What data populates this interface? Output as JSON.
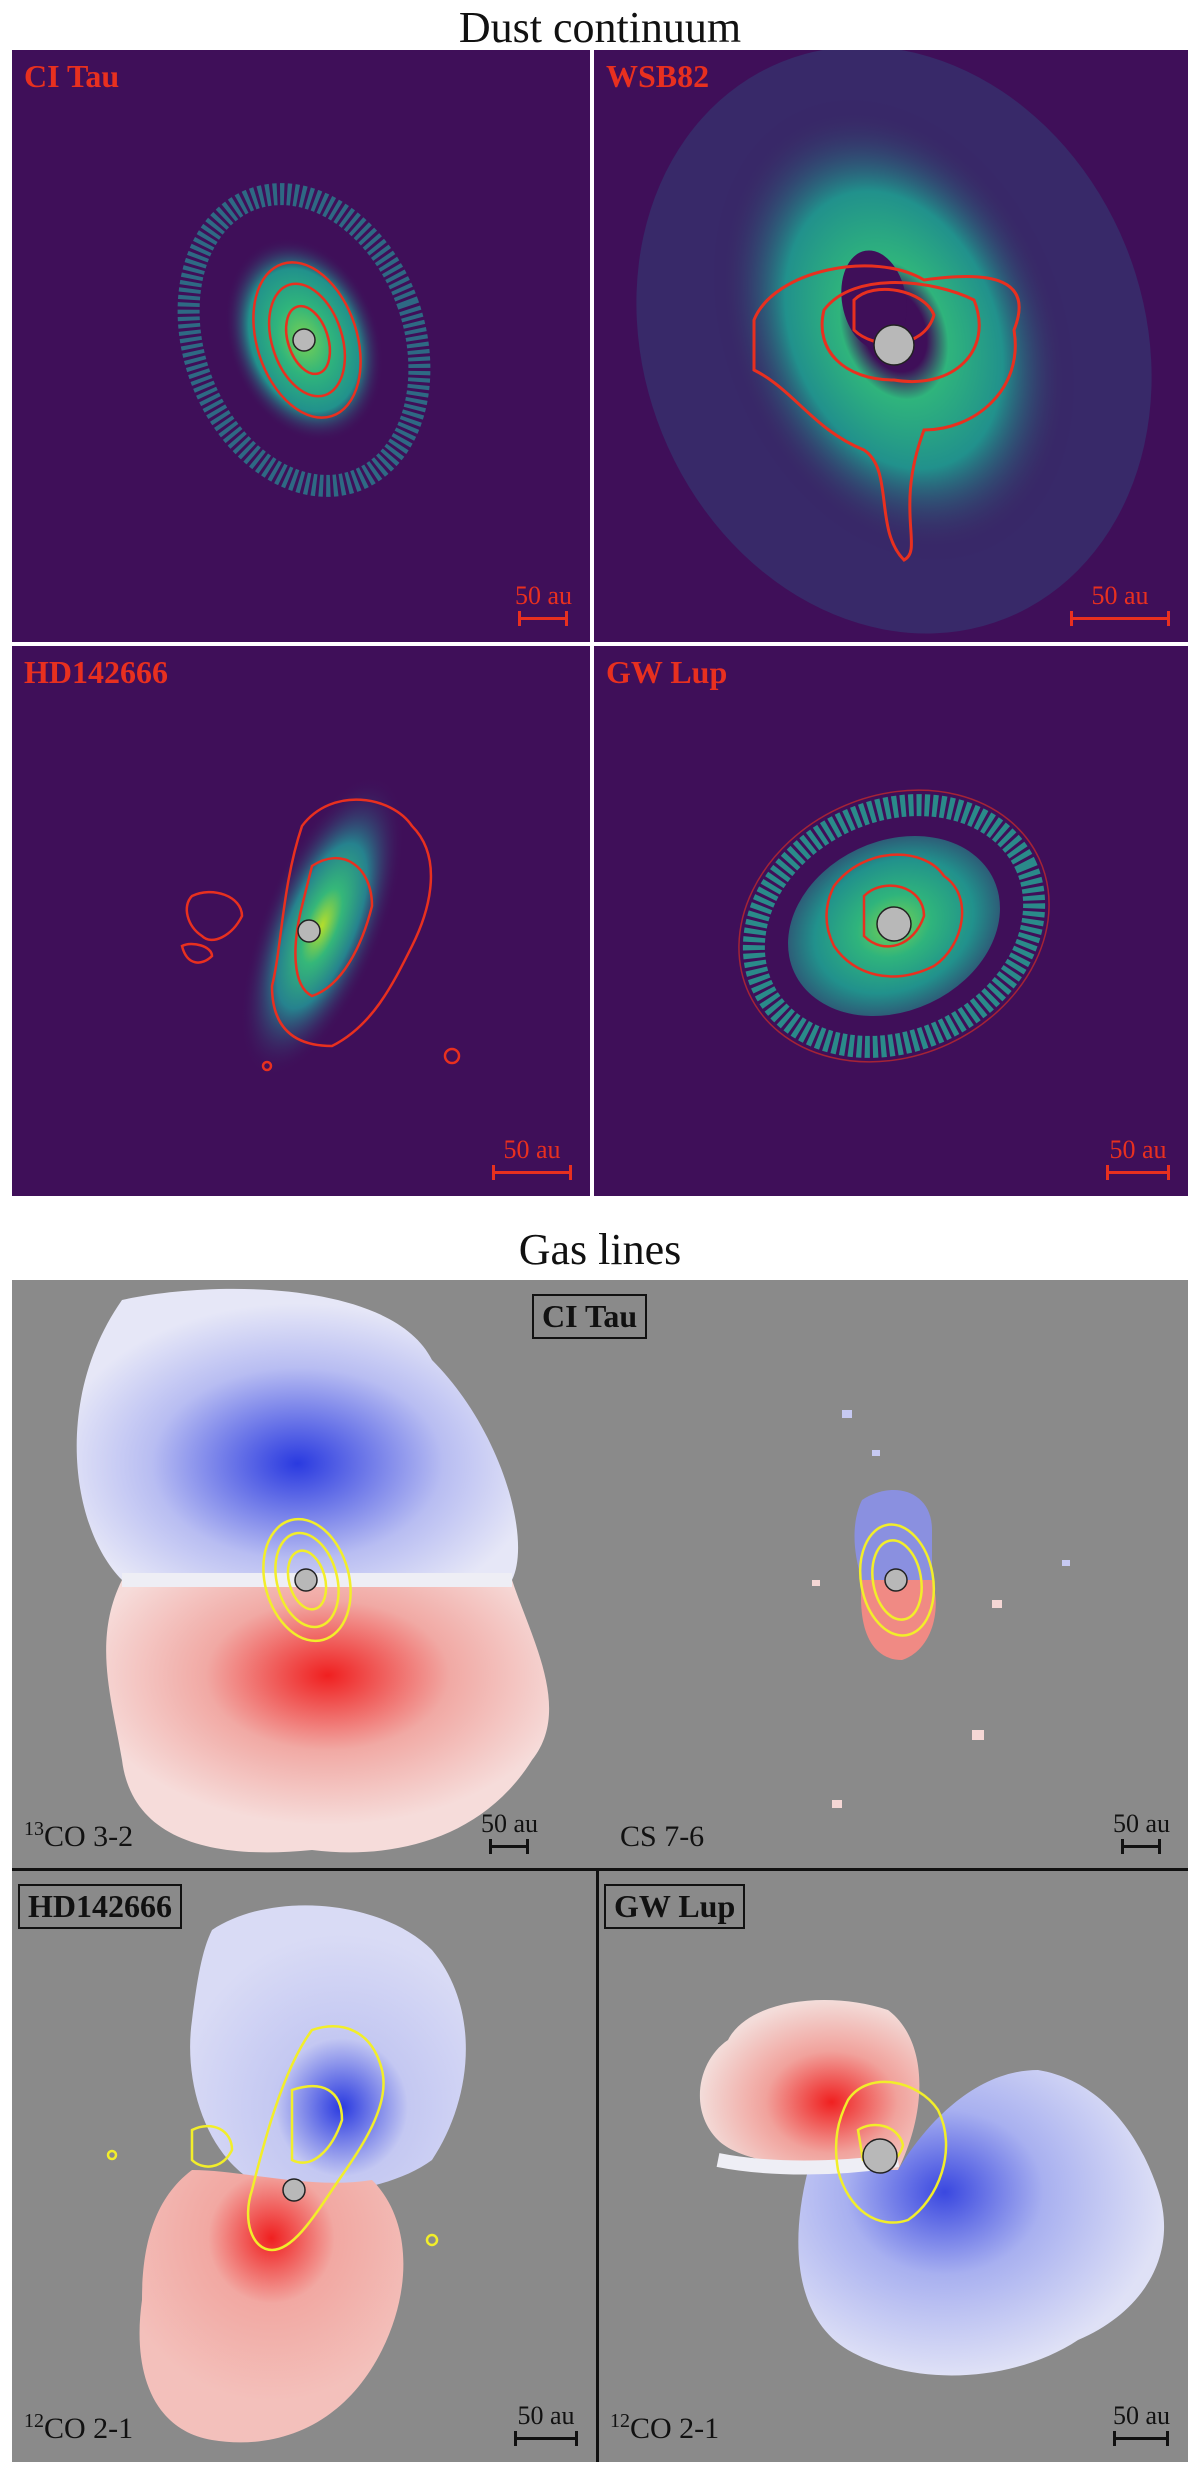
{
  "dust_section": {
    "title": "Dust continuum",
    "panels": [
      {
        "target": "CI Tau",
        "scale": "50 au"
      },
      {
        "target": "WSB82",
        "scale": "50 au"
      },
      {
        "target": "HD142666",
        "scale": "50 au"
      },
      {
        "target": "GW Lup",
        "scale": "50 au"
      }
    ]
  },
  "gas_section": {
    "title": "Gas lines",
    "ci_tau_label": "CI Tau",
    "panels": [
      {
        "line_prefix": "13",
        "line_rest": "CO 3-2",
        "scale": "50 au"
      },
      {
        "line_prefix": "",
        "line_rest": "CS 7-6",
        "scale": "50 au"
      },
      {
        "target": "HD142666",
        "line_prefix": "12",
        "line_rest": "CO 2-1",
        "scale": "50 au"
      },
      {
        "target": "GW Lup",
        "line_prefix": "12",
        "line_rest": "CO 2-1",
        "scale": "50 au"
      }
    ]
  },
  "colors": {
    "dust_bg": "#3f0f59",
    "dust_contour": "#e8301f",
    "gas_bg": "#8a8a8a",
    "gas_contour": "#f2ee2a",
    "star": "#b8b8b8"
  }
}
